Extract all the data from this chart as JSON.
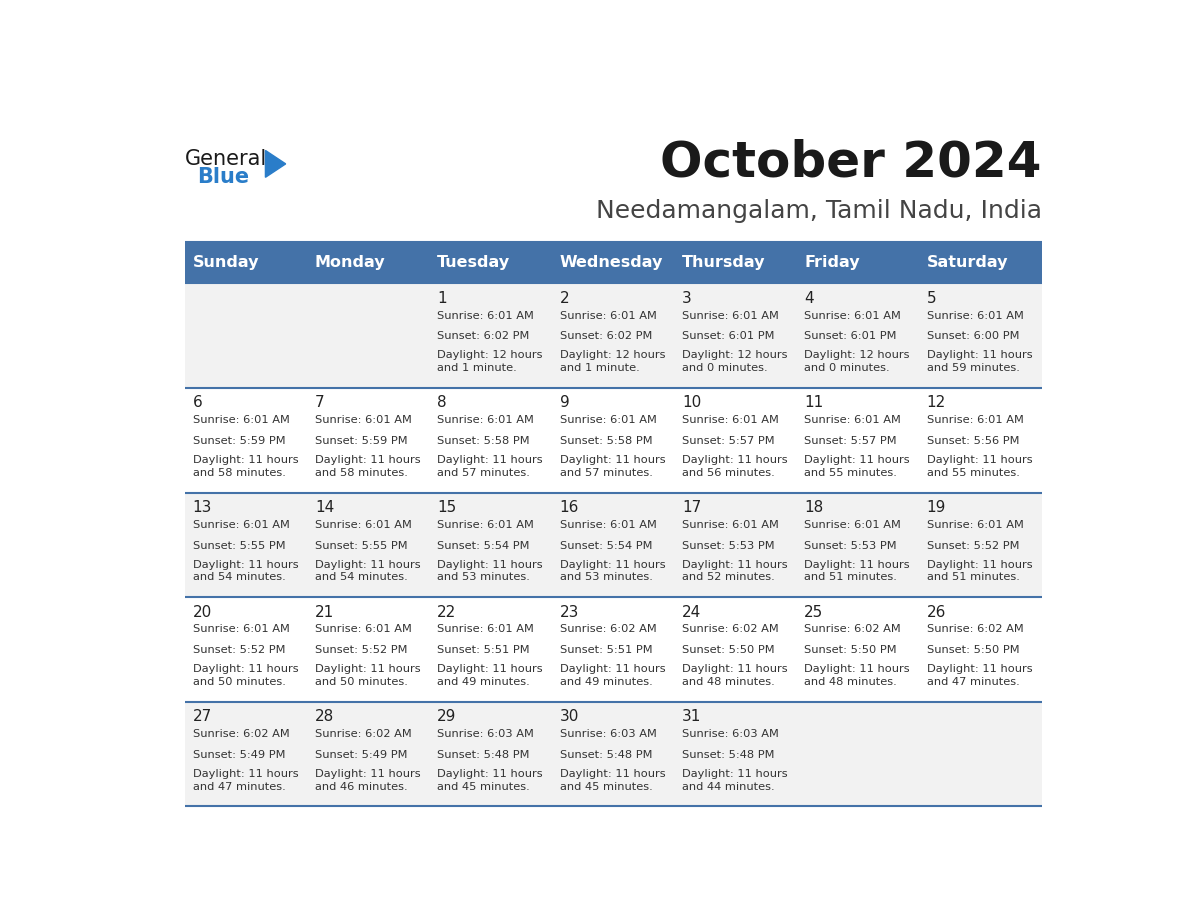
{
  "title": "October 2024",
  "subtitle": "Needamangalam, Tamil Nadu, India",
  "header_bg": "#4472a8",
  "header_text": "#ffffff",
  "row_bg_odd": "#f2f2f2",
  "row_bg_even": "#ffffff",
  "cell_text": "#333333",
  "line_color": "#4472a8",
  "days_of_week": [
    "Sunday",
    "Monday",
    "Tuesday",
    "Wednesday",
    "Thursday",
    "Friday",
    "Saturday"
  ],
  "weeks": [
    [
      {
        "day": "",
        "sunrise": "",
        "sunset": "",
        "daylight": ""
      },
      {
        "day": "",
        "sunrise": "",
        "sunset": "",
        "daylight": ""
      },
      {
        "day": "1",
        "sunrise": "Sunrise: 6:01 AM",
        "sunset": "Sunset: 6:02 PM",
        "daylight": "Daylight: 12 hours\nand 1 minute."
      },
      {
        "day": "2",
        "sunrise": "Sunrise: 6:01 AM",
        "sunset": "Sunset: 6:02 PM",
        "daylight": "Daylight: 12 hours\nand 1 minute."
      },
      {
        "day": "3",
        "sunrise": "Sunrise: 6:01 AM",
        "sunset": "Sunset: 6:01 PM",
        "daylight": "Daylight: 12 hours\nand 0 minutes."
      },
      {
        "day": "4",
        "sunrise": "Sunrise: 6:01 AM",
        "sunset": "Sunset: 6:01 PM",
        "daylight": "Daylight: 12 hours\nand 0 minutes."
      },
      {
        "day": "5",
        "sunrise": "Sunrise: 6:01 AM",
        "sunset": "Sunset: 6:00 PM",
        "daylight": "Daylight: 11 hours\nand 59 minutes."
      }
    ],
    [
      {
        "day": "6",
        "sunrise": "Sunrise: 6:01 AM",
        "sunset": "Sunset: 5:59 PM",
        "daylight": "Daylight: 11 hours\nand 58 minutes."
      },
      {
        "day": "7",
        "sunrise": "Sunrise: 6:01 AM",
        "sunset": "Sunset: 5:59 PM",
        "daylight": "Daylight: 11 hours\nand 58 minutes."
      },
      {
        "day": "8",
        "sunrise": "Sunrise: 6:01 AM",
        "sunset": "Sunset: 5:58 PM",
        "daylight": "Daylight: 11 hours\nand 57 minutes."
      },
      {
        "day": "9",
        "sunrise": "Sunrise: 6:01 AM",
        "sunset": "Sunset: 5:58 PM",
        "daylight": "Daylight: 11 hours\nand 57 minutes."
      },
      {
        "day": "10",
        "sunrise": "Sunrise: 6:01 AM",
        "sunset": "Sunset: 5:57 PM",
        "daylight": "Daylight: 11 hours\nand 56 minutes."
      },
      {
        "day": "11",
        "sunrise": "Sunrise: 6:01 AM",
        "sunset": "Sunset: 5:57 PM",
        "daylight": "Daylight: 11 hours\nand 55 minutes."
      },
      {
        "day": "12",
        "sunrise": "Sunrise: 6:01 AM",
        "sunset": "Sunset: 5:56 PM",
        "daylight": "Daylight: 11 hours\nand 55 minutes."
      }
    ],
    [
      {
        "day": "13",
        "sunrise": "Sunrise: 6:01 AM",
        "sunset": "Sunset: 5:55 PM",
        "daylight": "Daylight: 11 hours\nand 54 minutes."
      },
      {
        "day": "14",
        "sunrise": "Sunrise: 6:01 AM",
        "sunset": "Sunset: 5:55 PM",
        "daylight": "Daylight: 11 hours\nand 54 minutes."
      },
      {
        "day": "15",
        "sunrise": "Sunrise: 6:01 AM",
        "sunset": "Sunset: 5:54 PM",
        "daylight": "Daylight: 11 hours\nand 53 minutes."
      },
      {
        "day": "16",
        "sunrise": "Sunrise: 6:01 AM",
        "sunset": "Sunset: 5:54 PM",
        "daylight": "Daylight: 11 hours\nand 53 minutes."
      },
      {
        "day": "17",
        "sunrise": "Sunrise: 6:01 AM",
        "sunset": "Sunset: 5:53 PM",
        "daylight": "Daylight: 11 hours\nand 52 minutes."
      },
      {
        "day": "18",
        "sunrise": "Sunrise: 6:01 AM",
        "sunset": "Sunset: 5:53 PM",
        "daylight": "Daylight: 11 hours\nand 51 minutes."
      },
      {
        "day": "19",
        "sunrise": "Sunrise: 6:01 AM",
        "sunset": "Sunset: 5:52 PM",
        "daylight": "Daylight: 11 hours\nand 51 minutes."
      }
    ],
    [
      {
        "day": "20",
        "sunrise": "Sunrise: 6:01 AM",
        "sunset": "Sunset: 5:52 PM",
        "daylight": "Daylight: 11 hours\nand 50 minutes."
      },
      {
        "day": "21",
        "sunrise": "Sunrise: 6:01 AM",
        "sunset": "Sunset: 5:52 PM",
        "daylight": "Daylight: 11 hours\nand 50 minutes."
      },
      {
        "day": "22",
        "sunrise": "Sunrise: 6:01 AM",
        "sunset": "Sunset: 5:51 PM",
        "daylight": "Daylight: 11 hours\nand 49 minutes."
      },
      {
        "day": "23",
        "sunrise": "Sunrise: 6:02 AM",
        "sunset": "Sunset: 5:51 PM",
        "daylight": "Daylight: 11 hours\nand 49 minutes."
      },
      {
        "day": "24",
        "sunrise": "Sunrise: 6:02 AM",
        "sunset": "Sunset: 5:50 PM",
        "daylight": "Daylight: 11 hours\nand 48 minutes."
      },
      {
        "day": "25",
        "sunrise": "Sunrise: 6:02 AM",
        "sunset": "Sunset: 5:50 PM",
        "daylight": "Daylight: 11 hours\nand 48 minutes."
      },
      {
        "day": "26",
        "sunrise": "Sunrise: 6:02 AM",
        "sunset": "Sunset: 5:50 PM",
        "daylight": "Daylight: 11 hours\nand 47 minutes."
      }
    ],
    [
      {
        "day": "27",
        "sunrise": "Sunrise: 6:02 AM",
        "sunset": "Sunset: 5:49 PM",
        "daylight": "Daylight: 11 hours\nand 47 minutes."
      },
      {
        "day": "28",
        "sunrise": "Sunrise: 6:02 AM",
        "sunset": "Sunset: 5:49 PM",
        "daylight": "Daylight: 11 hours\nand 46 minutes."
      },
      {
        "day": "29",
        "sunrise": "Sunrise: 6:03 AM",
        "sunset": "Sunset: 5:48 PM",
        "daylight": "Daylight: 11 hours\nand 45 minutes."
      },
      {
        "day": "30",
        "sunrise": "Sunrise: 6:03 AM",
        "sunset": "Sunset: 5:48 PM",
        "daylight": "Daylight: 11 hours\nand 45 minutes."
      },
      {
        "day": "31",
        "sunrise": "Sunrise: 6:03 AM",
        "sunset": "Sunset: 5:48 PM",
        "daylight": "Daylight: 11 hours\nand 44 minutes."
      },
      {
        "day": "",
        "sunrise": "",
        "sunset": "",
        "daylight": ""
      },
      {
        "day": "",
        "sunrise": "",
        "sunset": "",
        "daylight": ""
      }
    ]
  ],
  "logo_text_general": "General",
  "logo_text_blue": "Blue",
  "logo_color_general": "#1a1a1a",
  "logo_color_blue": "#2a7dc9",
  "logo_triangle_color": "#2a7dc9"
}
